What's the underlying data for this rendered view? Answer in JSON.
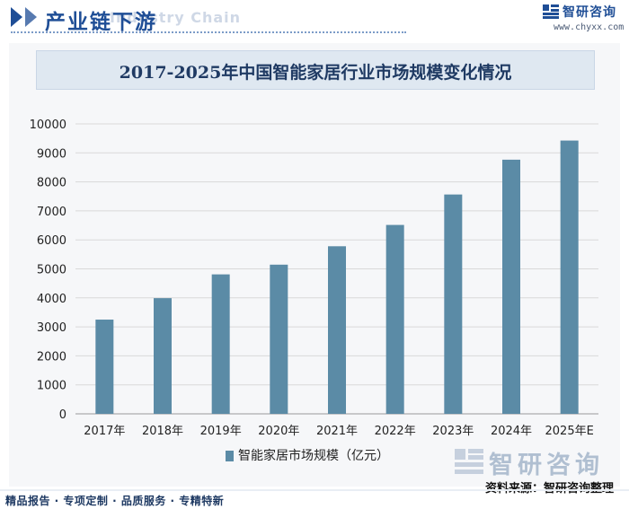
{
  "header": {
    "title": "产业链下游",
    "ghost_text": "Industry Chain",
    "brand_name": "智研咨询",
    "brand_url": "www.chyxx.com"
  },
  "footer": {
    "left_text": "精品报告 · 专项定制 · 品质服务 · 专精特新",
    "brand_watermark": "智研咨询",
    "source": "资料来源：智研咨询整理"
  },
  "colors": {
    "bar": "#5b8ba6",
    "title_bg": "#dfe8f1",
    "accent": "#1f4e96",
    "grid": "#d9d9d9"
  },
  "chart_data": {
    "type": "bar",
    "title": "2017-2025年中国智能家居行业市场规模变化情况",
    "categories": [
      "2017年",
      "2018年",
      "2019年",
      "2020年",
      "2021年",
      "2022年",
      "2023年",
      "2024年",
      "2025年E"
    ],
    "series": [
      {
        "name": "智能家居市场规模（亿元）",
        "values": [
          3250,
          3990,
          4810,
          5145,
          5780,
          6515,
          7565,
          8765,
          9425
        ]
      }
    ],
    "ylim": [
      0,
      10000
    ],
    "yticks": [
      "0",
      "1000",
      "2000",
      "3000",
      "4000",
      "5000",
      "6000",
      "7000",
      "8000",
      "9000",
      "10000"
    ],
    "grid": true,
    "legend_position": "bottom"
  }
}
